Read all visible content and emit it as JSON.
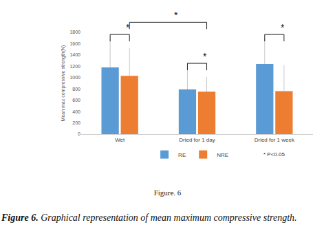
{
  "chart_data": {
    "type": "bar",
    "categories": [
      "Wet",
      "Dried for 1 day",
      "Dried for 1 week"
    ],
    "series": [
      {
        "name": "RE",
        "color": "#5b9bd5",
        "values": [
          1180,
          790,
          1240
        ],
        "errors": [
          510,
          390,
          450
        ]
      },
      {
        "name": "NRE",
        "color": "#ed7d31",
        "values": [
          1030,
          750,
          760
        ],
        "errors": [
          490,
          260,
          460
        ]
      }
    ],
    "y_label": "Mean max compressive strength(N)",
    "ylim": [
      0,
      1800
    ],
    "yticks": [
      0,
      200,
      400,
      600,
      800,
      1000,
      1200,
      1400,
      1600,
      1800
    ],
    "grid": false,
    "legend": "bottom",
    "note": "* P<0.05",
    "brackets": [
      {
        "from": [
          0,
          0
        ],
        "to": [
          0,
          1
        ],
        "text": "*"
      },
      {
        "from": [
          0,
          1
        ],
        "to": [
          1,
          1
        ],
        "text": "*"
      },
      {
        "from": [
          1,
          0
        ],
        "to": [
          1,
          1
        ],
        "text": "*"
      },
      {
        "from": [
          2,
          0
        ],
        "to": [
          2,
          1
        ],
        "text": "*"
      }
    ],
    "figure_label": "Figure. 6",
    "caption": {
      "label": "Figure 6.",
      "text": "Graphical representation of mean maximum compressive strength."
    }
  }
}
